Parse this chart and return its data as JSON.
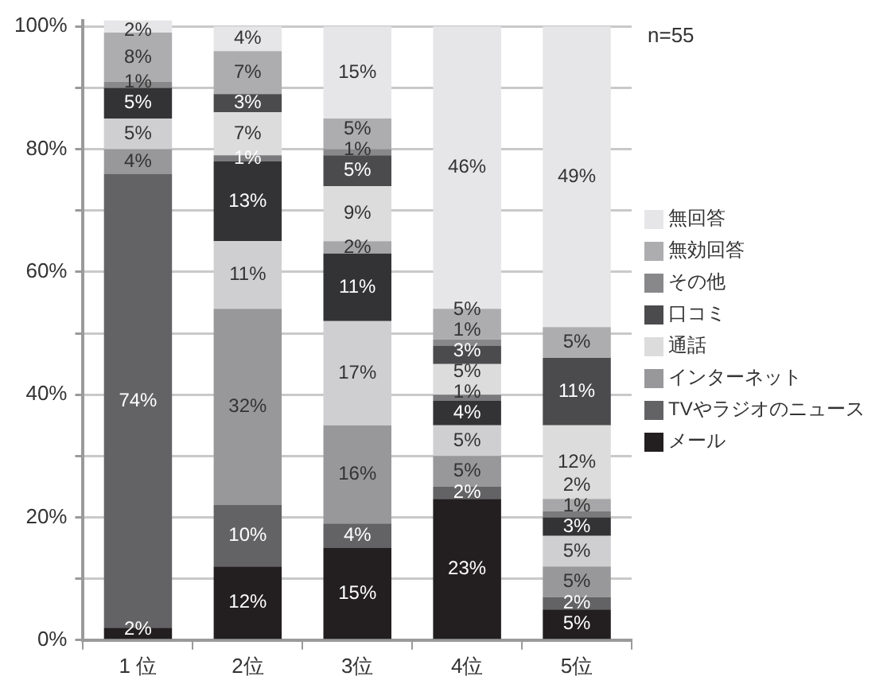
{
  "chart_data": {
    "type": "bar",
    "stacked": true,
    "categories": [
      "1 位",
      "2位",
      "3位",
      "4位",
      "5位"
    ],
    "series": [
      {
        "name": "メール",
        "color": "#231f20",
        "values": [
          2,
          12,
          15,
          23,
          5
        ],
        "value_labels": [
          "2%",
          "12%",
          "15%",
          "23%",
          "5%"
        ]
      },
      {
        "name": "TVやラジオのニュース",
        "color": "#636365",
        "values": [
          74,
          10,
          4,
          2,
          2
        ],
        "value_labels": [
          "74%",
          "10%",
          "4%",
          "2%",
          "2%"
        ]
      },
      {
        "name": "インターネット",
        "color": "#98989a",
        "values": [
          4,
          32,
          16,
          5,
          5
        ],
        "value_labels": [
          "4%",
          "32%",
          "16%",
          "5%",
          "5%"
        ]
      },
      {
        "color": "#cfcfd1",
        "values": [
          5,
          11,
          17,
          5,
          5
        ],
        "value_labels": [
          "5%",
          "11%",
          "17%",
          "5%",
          "5%"
        ]
      },
      {
        "color": "#333335",
        "values": [
          5,
          13,
          11,
          4,
          3
        ],
        "value_labels": [
          "5%",
          "13%",
          "11%",
          "4%",
          "3%"
        ]
      },
      {
        "color": "#7a7a7c",
        "values": [
          null,
          1,
          null,
          1,
          1
        ],
        "value_labels": [
          null,
          "1%",
          null,
          "1%",
          "1%"
        ]
      },
      {
        "color": "#a7a7a9",
        "values": [
          null,
          null,
          2,
          null,
          2
        ],
        "value_labels": [
          null,
          null,
          "2%",
          null,
          "2%"
        ]
      },
      {
        "name": "通話",
        "color": "#dcdcdd",
        "values": [
          null,
          7,
          9,
          5,
          12
        ],
        "value_labels": [
          null,
          "7%",
          "9%",
          "5%",
          "12%"
        ]
      },
      {
        "name": "口コミ",
        "color": "#4b4b4d",
        "values": [
          null,
          3,
          5,
          3,
          11
        ],
        "value_labels": [
          null,
          "3%",
          "5%",
          "3%",
          "11%"
        ]
      },
      {
        "name": "その他",
        "color": "#88888a",
        "values": [
          1,
          null,
          1,
          1,
          null
        ],
        "value_labels": [
          "1%",
          null,
          "1%",
          "1%",
          null
        ]
      },
      {
        "name": "無効回答",
        "color": "#adadaf",
        "values": [
          8,
          7,
          5,
          5,
          5
        ],
        "value_labels": [
          "8%",
          "7%",
          "5%",
          "5%",
          "5%"
        ]
      },
      {
        "name": "無回答",
        "color": "#e6e6e8",
        "values": [
          2,
          4,
          15,
          46,
          49
        ],
        "value_labels": [
          "2%",
          "4%",
          "15%",
          "46%",
          "49%"
        ]
      }
    ],
    "ylim": [
      0,
      101
    ],
    "yticks": [
      {
        "value": 0,
        "label": "0%"
      },
      {
        "value": 10,
        "label": null
      },
      {
        "value": 20,
        "label": "20%"
      },
      {
        "value": 30,
        "label": null
      },
      {
        "value": 40,
        "label": "40%"
      },
      {
        "value": 50,
        "label": null
      },
      {
        "value": 60,
        "label": "60%"
      },
      {
        "value": 70,
        "label": null
      },
      {
        "value": 80,
        "label": "80%"
      },
      {
        "value": 90,
        "label": null
      },
      {
        "value": 100,
        "label": "100%"
      }
    ],
    "grid": "y",
    "legend": "right",
    "annotations": [
      "n=55"
    ]
  }
}
